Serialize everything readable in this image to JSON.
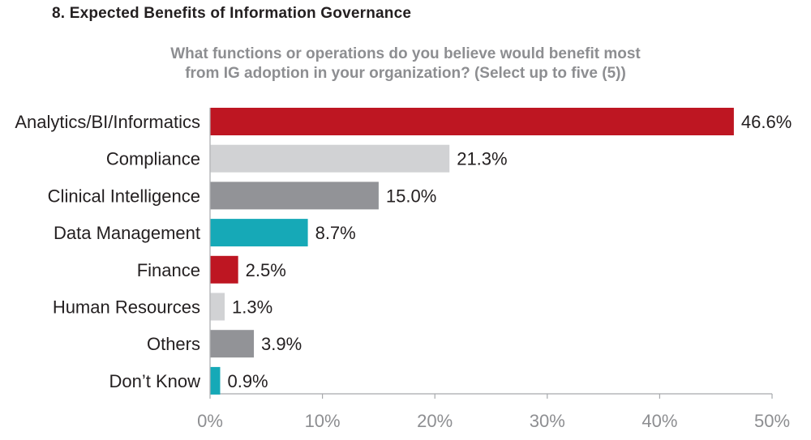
{
  "chart_data": {
    "type": "bar",
    "orientation": "horizontal",
    "title": "8. Expected Benefits of Information Governance",
    "subtitle_lines": [
      "What functions or operations do you believe would benefit most",
      "from IG adoption in your organization? (Select up to five (5))"
    ],
    "categories": [
      "Analytics/BI/Informatics",
      "Compliance",
      "Clinical Intelligence",
      "Data Management",
      "Finance",
      "Human Resources",
      "Others",
      "Don’t Know"
    ],
    "values": [
      46.6,
      21.3,
      15.0,
      8.7,
      2.5,
      1.3,
      3.9,
      0.9
    ],
    "value_labels": [
      "46.6%",
      "21.3%",
      "15.0%",
      "8.7%",
      "2.5%",
      "1.3%",
      "3.9%",
      "0.9%"
    ],
    "bar_colors": [
      "#be1622",
      "#d1d2d4",
      "#929397",
      "#16a9b7",
      "#be1622",
      "#d1d2d4",
      "#929397",
      "#16a9b7"
    ],
    "xlim": [
      0,
      50
    ],
    "xticks": [
      0,
      10,
      20,
      30,
      40,
      50
    ],
    "xtick_labels": [
      "0%",
      "10%",
      "20%",
      "30%",
      "40%",
      "50%"
    ],
    "xlabel": "",
    "ylabel": "",
    "grid": false
  }
}
